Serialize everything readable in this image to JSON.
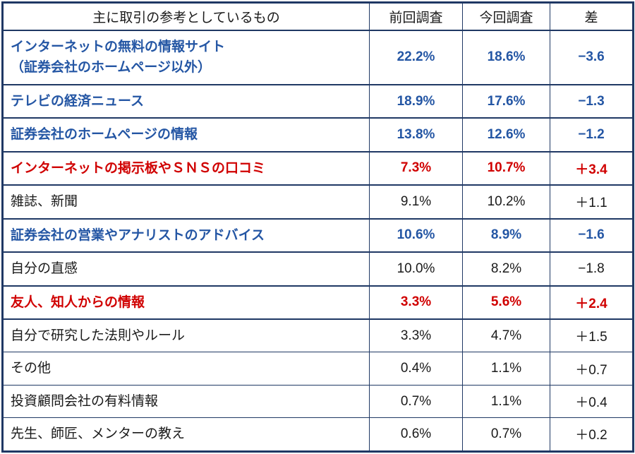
{
  "colors": {
    "border": "#1F3864",
    "emphasis_blue": "#2456A4",
    "emphasis_red": "#D00000",
    "text": "#1a1a1a",
    "background": "#ffffff"
  },
  "chart_data": {
    "type": "table",
    "title": "主に取引の参考としているもの",
    "columns": [
      "主に取引の参考としているもの",
      "前回調査",
      "今回調査",
      "差"
    ],
    "rows": [
      {
        "label": "インターネットの無料の情報サイト\n（証券会社のホームページ以外）",
        "prev": "22.2%",
        "curr": "18.6%",
        "diff": "−3.6",
        "emphasis": "blue"
      },
      {
        "label": "テレビの経済ニュース",
        "prev": "18.9%",
        "curr": "17.6%",
        "diff": "−1.3",
        "emphasis": "blue"
      },
      {
        "label": "証券会社のホームページの情報",
        "prev": "13.8%",
        "curr": "12.6%",
        "diff": "−1.2",
        "emphasis": "blue"
      },
      {
        "label": "インターネットの掲示板やＳＮＳの口コミ",
        "prev": "7.3%",
        "curr": "10.7%",
        "diff": "＋3.4",
        "emphasis": "red"
      },
      {
        "label": "雑誌、新聞",
        "prev": "9.1%",
        "curr": "10.2%",
        "diff": "＋1.1",
        "emphasis": "none"
      },
      {
        "label": "証券会社の営業やアナリストのアドバイス",
        "prev": "10.6%",
        "curr": "8.9%",
        "diff": "−1.6",
        "emphasis": "blue"
      },
      {
        "label": "自分の直感",
        "prev": "10.0%",
        "curr": "8.2%",
        "diff": "−1.8",
        "emphasis": "none"
      },
      {
        "label": "友人、知人からの情報",
        "prev": "3.3%",
        "curr": "5.6%",
        "diff": "＋2.4",
        "emphasis": "red"
      },
      {
        "label": "自分で研究した法則やルール",
        "prev": "3.3%",
        "curr": "4.7%",
        "diff": "＋1.5",
        "emphasis": "none"
      },
      {
        "label": "その他",
        "prev": "0.4%",
        "curr": "1.1%",
        "diff": "＋0.7",
        "emphasis": "none"
      },
      {
        "label": "投資顧問会社の有料情報",
        "prev": "0.7%",
        "curr": "1.1%",
        "diff": "＋0.4",
        "emphasis": "none"
      },
      {
        "label": "先生、師匠、メンターの教え",
        "prev": "0.6%",
        "curr": "0.7%",
        "diff": "＋0.2",
        "emphasis": "none"
      }
    ]
  }
}
